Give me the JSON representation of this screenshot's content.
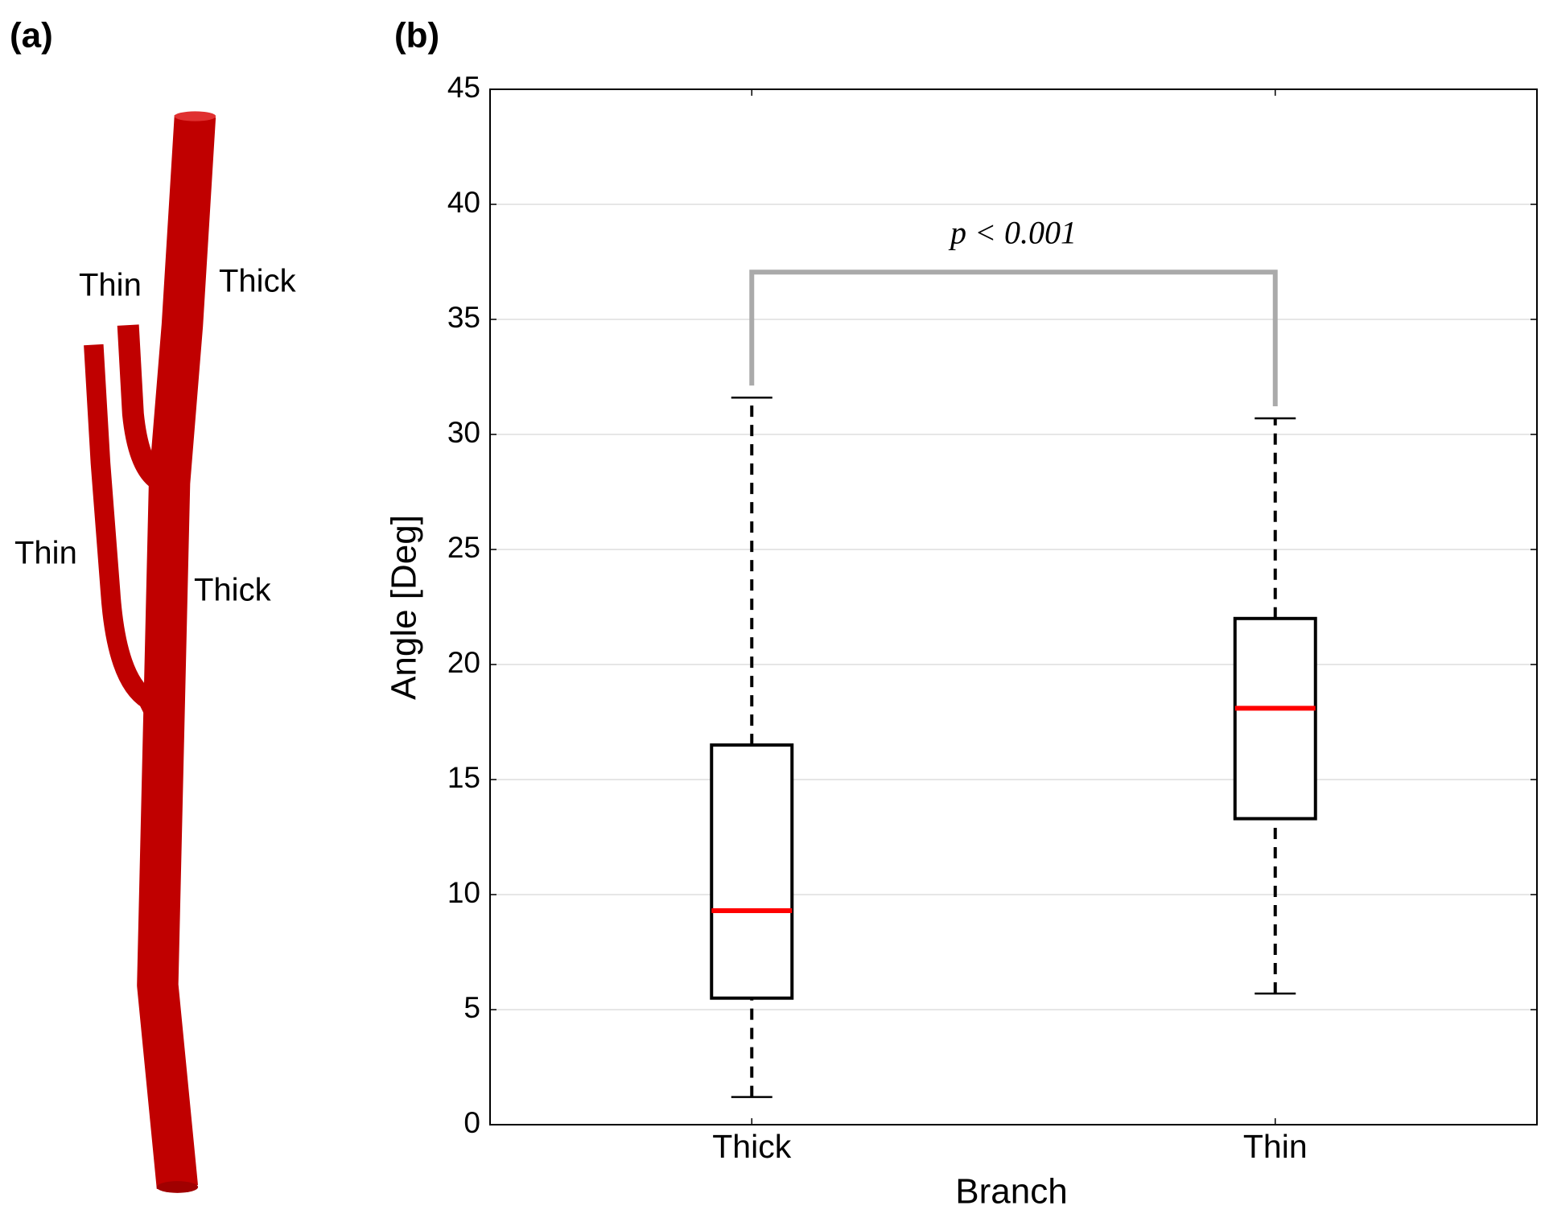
{
  "panel_a": {
    "panel_label": "(a)",
    "labels": [
      {
        "text": "Thin",
        "color": "#c8900a"
      },
      {
        "text": "Thick",
        "color": "#555555"
      },
      {
        "text": "Thin",
        "color": "#c8900a"
      },
      {
        "text": "Thick",
        "color": "#555555"
      }
    ]
  },
  "chart_data": {
    "type": "box",
    "panel_label": "(b)",
    "x_label": "Branch",
    "y_label": "Angle [Deg]",
    "categories": [
      "Thick",
      "Thin"
    ],
    "boxes": [
      {
        "whislo": 1.2,
        "q1": 5.5,
        "med": 9.3,
        "q3": 16.5,
        "whishi": 31.6
      },
      {
        "whislo": 5.7,
        "q1": 13.3,
        "med": 18.1,
        "q3": 22.0,
        "whishi": 30.7
      }
    ],
    "box_color": "#000000",
    "median_color": "#ff0000",
    "annotation": "p < 0.001",
    "bracket_color": "#aaaaaa",
    "ylim": [
      0,
      45
    ],
    "yticks": [
      0,
      5,
      10,
      15,
      20,
      25,
      30,
      35,
      40,
      45
    ],
    "grid": true
  }
}
